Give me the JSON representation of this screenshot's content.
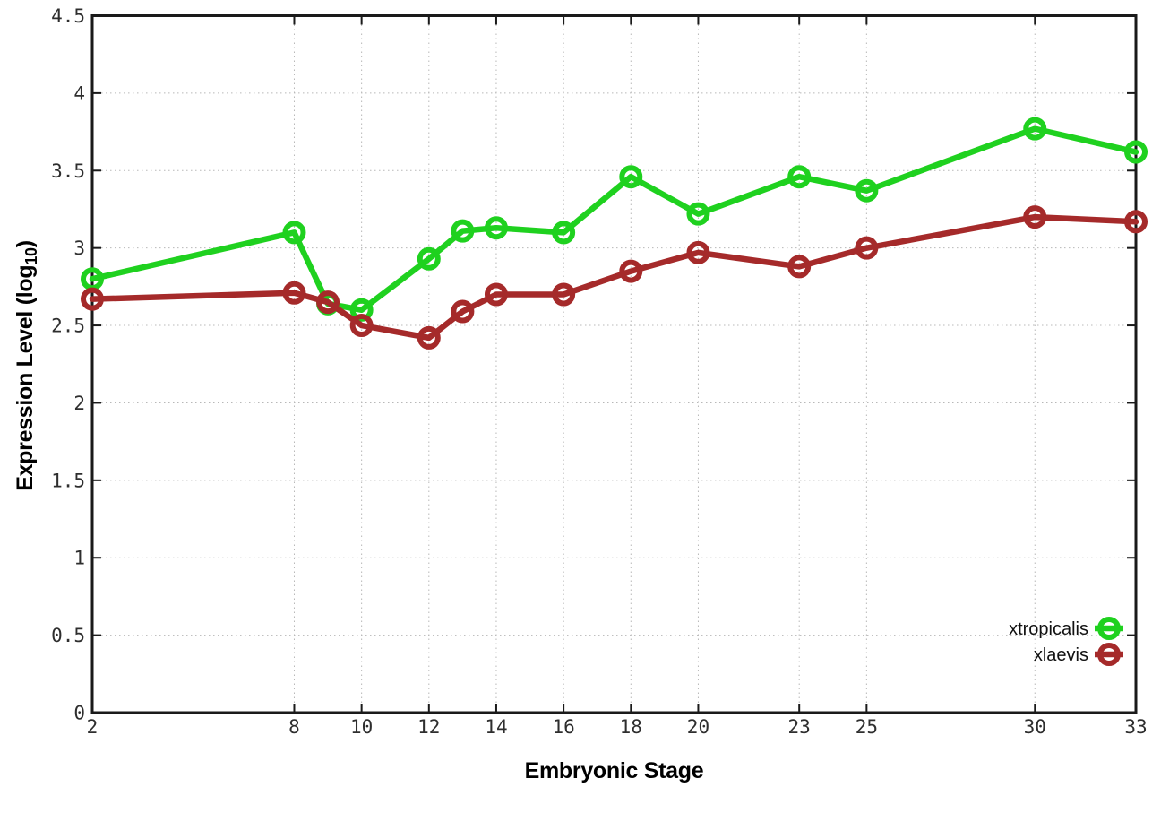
{
  "chart_data": {
    "type": "line",
    "title": "",
    "xlabel": "Embryonic Stage",
    "ylabel_prefix": "Expression Level (log",
    "ylabel_sub": "10",
    "ylabel_suffix": ")",
    "xlim": [
      2,
      33
    ],
    "ylim": [
      0,
      4.5
    ],
    "grid": true,
    "grid_style": "dotted",
    "legend_position": "bottom-right",
    "x": [
      2,
      8,
      9,
      10,
      12,
      13,
      14,
      16,
      18,
      20,
      23,
      25,
      30,
      33
    ],
    "x_ticks": [
      2,
      8,
      10,
      12,
      14,
      16,
      18,
      20,
      23,
      25,
      30,
      33
    ],
    "x_tick_labels": [
      "2",
      "8",
      "10",
      "12",
      "14",
      "16",
      "18",
      "20",
      "23",
      "25",
      "30",
      "33"
    ],
    "y_ticks": [
      0,
      0.5,
      1,
      1.5,
      2,
      2.5,
      3,
      3.5,
      4,
      4.5
    ],
    "y_tick_labels": [
      "0",
      "0.5",
      "1",
      "1.5",
      "2",
      "2.5",
      "3",
      "3.5",
      "4",
      "4.5"
    ],
    "series": [
      {
        "name": "xtropicalis",
        "color": "#1fd11f",
        "marker": "open-circle",
        "values": [
          2.8,
          3.1,
          2.64,
          2.6,
          2.93,
          3.11,
          3.13,
          3.1,
          3.46,
          3.22,
          3.46,
          3.37,
          3.77,
          3.62
        ]
      },
      {
        "name": "xlaevis",
        "color": "#a52a2a",
        "marker": "open-circle",
        "values": [
          2.67,
          2.71,
          2.65,
          2.5,
          2.42,
          2.59,
          2.7,
          2.7,
          2.85,
          2.97,
          2.88,
          3.0,
          3.2,
          3.17
        ]
      }
    ],
    "colors": {
      "background": "#ffffff",
      "border": "#1a1a1a",
      "grid": "#b8b8b8",
      "tick_label": "#2e2e2e"
    }
  }
}
